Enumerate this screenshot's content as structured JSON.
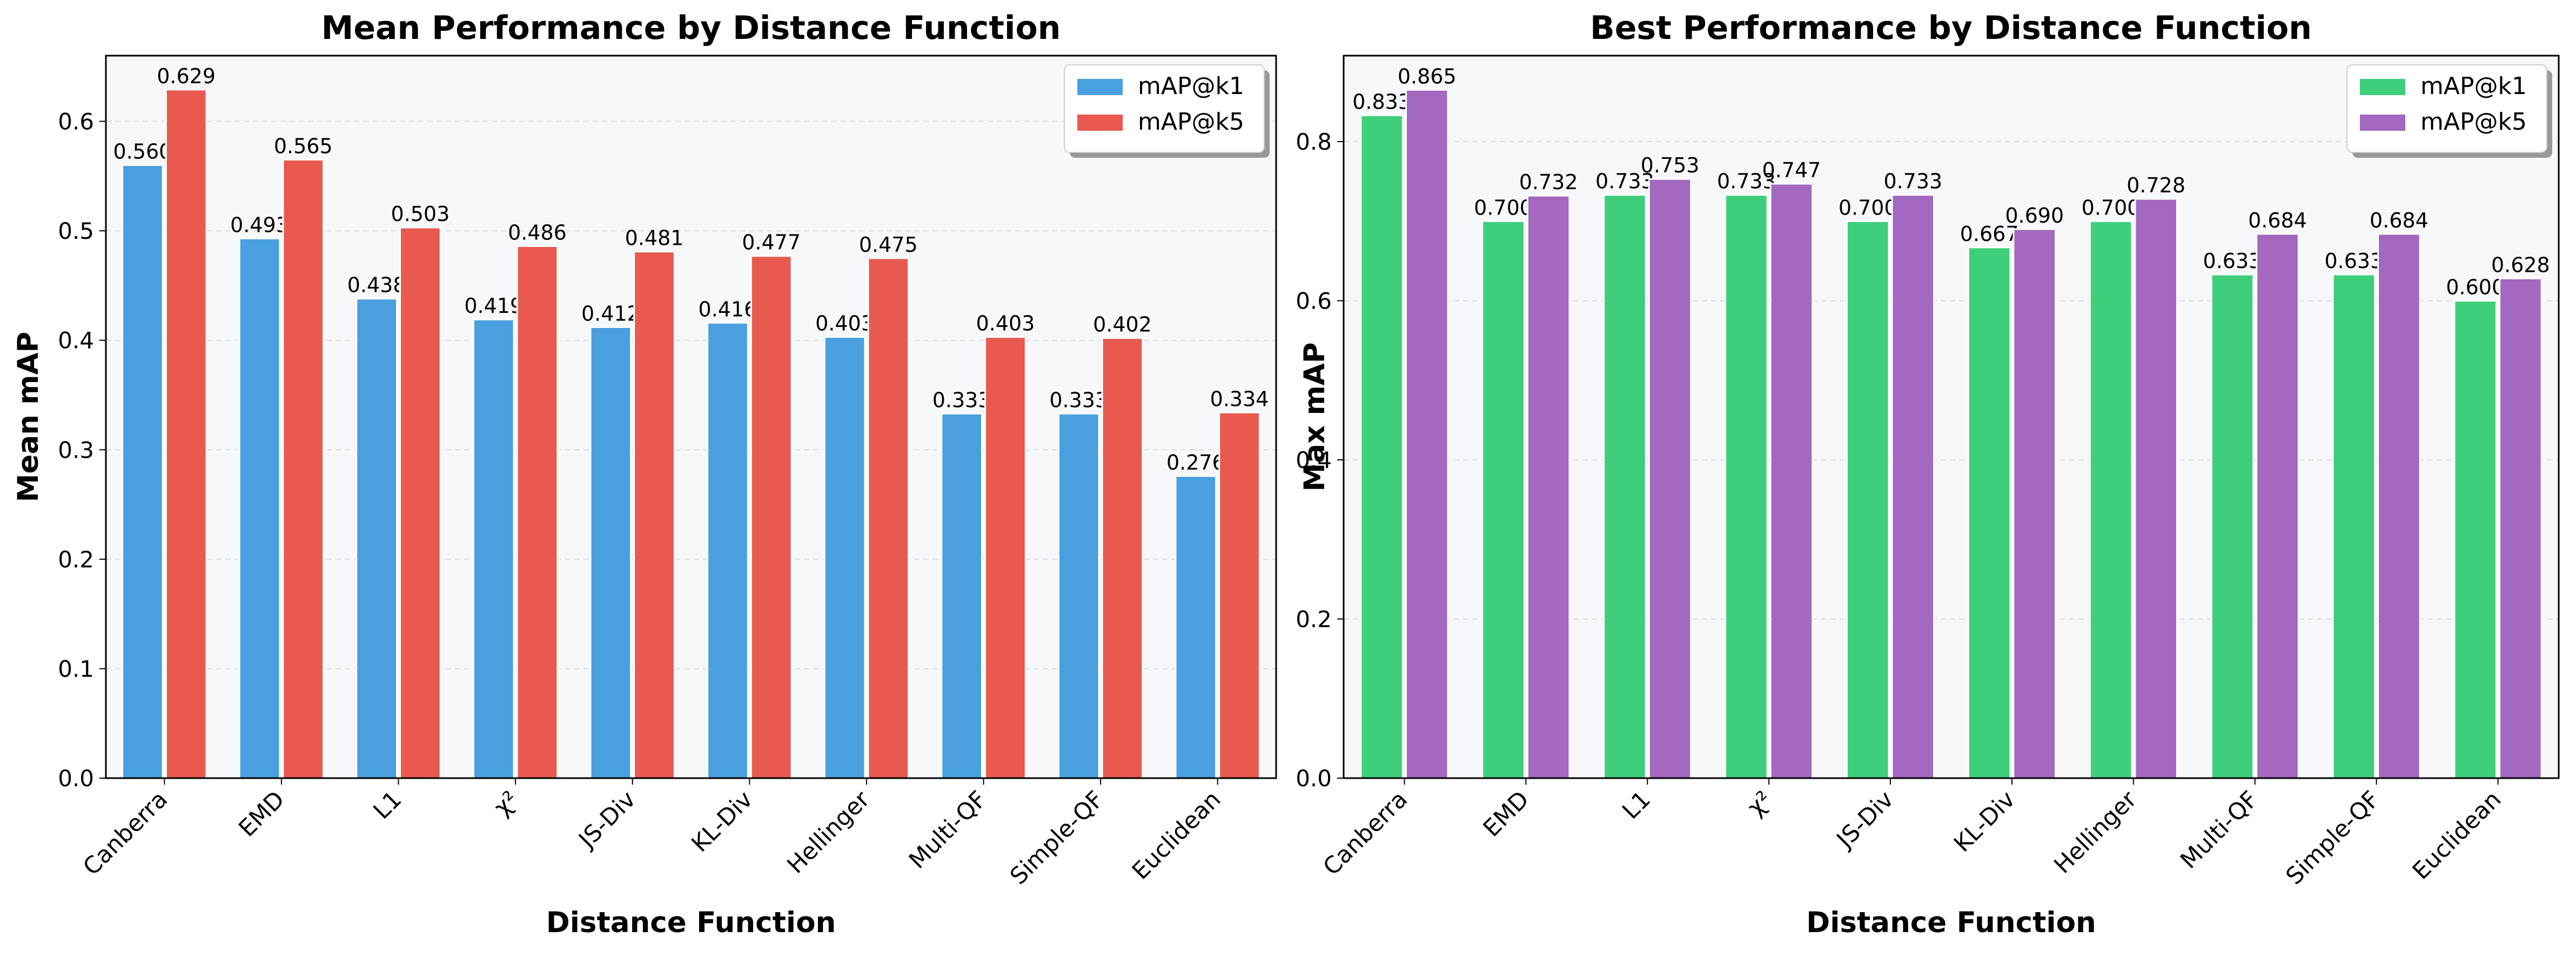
{
  "chart_data": [
    {
      "type": "bar",
      "title": "Mean Performance by Distance Function",
      "xlabel": "Distance Function",
      "ylabel": "Mean mAP",
      "ylim": [
        0,
        0.66
      ],
      "yticks": [
        "0.0",
        "0.1",
        "0.2",
        "0.3",
        "0.4",
        "0.5",
        "0.6"
      ],
      "grid": "y-dashed",
      "legend_position": "top-right",
      "categories": [
        "Canberra",
        "EMD",
        "L1",
        "χ²",
        "JS-Div",
        "KL-Div",
        "Hellinger",
        "Multi-QF",
        "Simple-QF",
        "Euclidean"
      ],
      "series": [
        {
          "name": "mAP@k1",
          "color": "#4aa0df",
          "values": [
            0.56,
            0.493,
            0.438,
            0.419,
            0.412,
            0.416,
            0.403,
            0.333,
            0.333,
            0.276
          ],
          "labels": [
            "0.560",
            "0.493",
            "0.438",
            "0.419",
            "0.412",
            "0.416",
            "0.403",
            "0.333",
            "0.333",
            "0.276"
          ]
        },
        {
          "name": "mAP@k5",
          "color": "#e85a4f",
          "values": [
            0.629,
            0.565,
            0.503,
            0.486,
            0.481,
            0.477,
            0.475,
            0.403,
            0.402,
            0.334
          ],
          "labels": [
            "0.629",
            "0.565",
            "0.503",
            "0.486",
            "0.481",
            "0.477",
            "0.475",
            "0.403",
            "0.402",
            "0.334"
          ]
        }
      ]
    },
    {
      "type": "bar",
      "title": "Best Performance by Distance Function",
      "xlabel": "Distance Function",
      "ylabel": "Max mAP",
      "ylim": [
        0,
        0.908
      ],
      "yticks": [
        "0.0",
        "0.2",
        "0.4",
        "0.6",
        "0.8"
      ],
      "grid": "y-dashed",
      "legend_position": "top-right",
      "categories": [
        "Canberra",
        "EMD",
        "L1",
        "χ²",
        "JS-Div",
        "KL-Div",
        "Hellinger",
        "Multi-QF",
        "Simple-QF",
        "Euclidean"
      ],
      "series": [
        {
          "name": "mAP@k1",
          "color": "#3fcf7b",
          "values": [
            0.833,
            0.7,
            0.733,
            0.733,
            0.7,
            0.667,
            0.7,
            0.633,
            0.633,
            0.6
          ],
          "labels": [
            "0.833",
            "0.700",
            "0.733",
            "0.733",
            "0.700",
            "0.667",
            "0.700",
            "0.633",
            "0.633",
            "0.600"
          ]
        },
        {
          "name": "mAP@k5",
          "color": "#a368bf",
          "values": [
            0.865,
            0.732,
            0.753,
            0.747,
            0.733,
            0.69,
            0.728,
            0.684,
            0.684,
            0.628
          ],
          "labels": [
            "0.865",
            "0.732",
            "0.753",
            "0.747",
            "0.733",
            "0.690",
            "0.728",
            "0.684",
            "0.684",
            "0.628"
          ]
        }
      ]
    }
  ]
}
